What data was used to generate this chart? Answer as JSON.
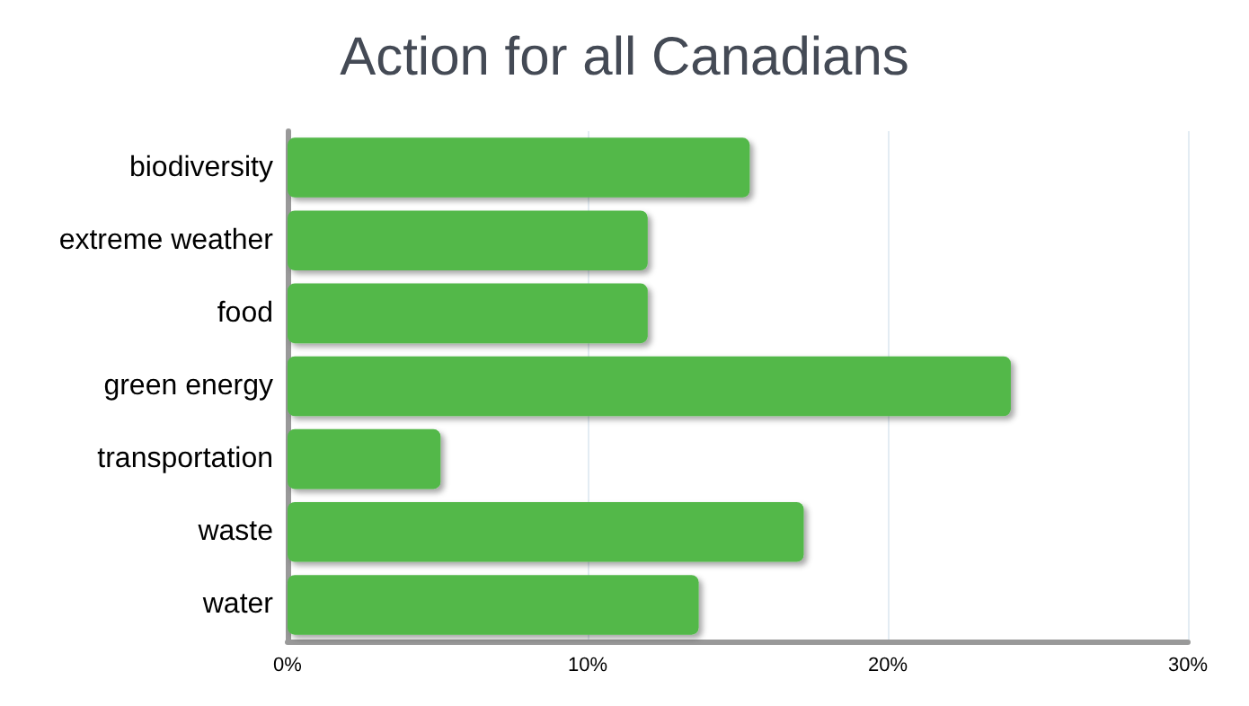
{
  "chart_data": {
    "type": "bar",
    "orientation": "horizontal",
    "title": "Action for all Canadians",
    "categories": [
      "biodiversity",
      "extreme weather",
      "food",
      "green energy",
      "transportation",
      "waste",
      "water"
    ],
    "values": [
      15.4,
      12.0,
      12.0,
      24.1,
      5.1,
      17.2,
      13.7
    ],
    "color": "#52b84a",
    "xlim": [
      0,
      30
    ],
    "xticks": [
      {
        "value": 0,
        "label": "0%"
      },
      {
        "value": 10,
        "label": "10%"
      },
      {
        "value": 20,
        "label": "20%"
      },
      {
        "value": 30,
        "label": "30%"
      }
    ],
    "grid": "x"
  }
}
